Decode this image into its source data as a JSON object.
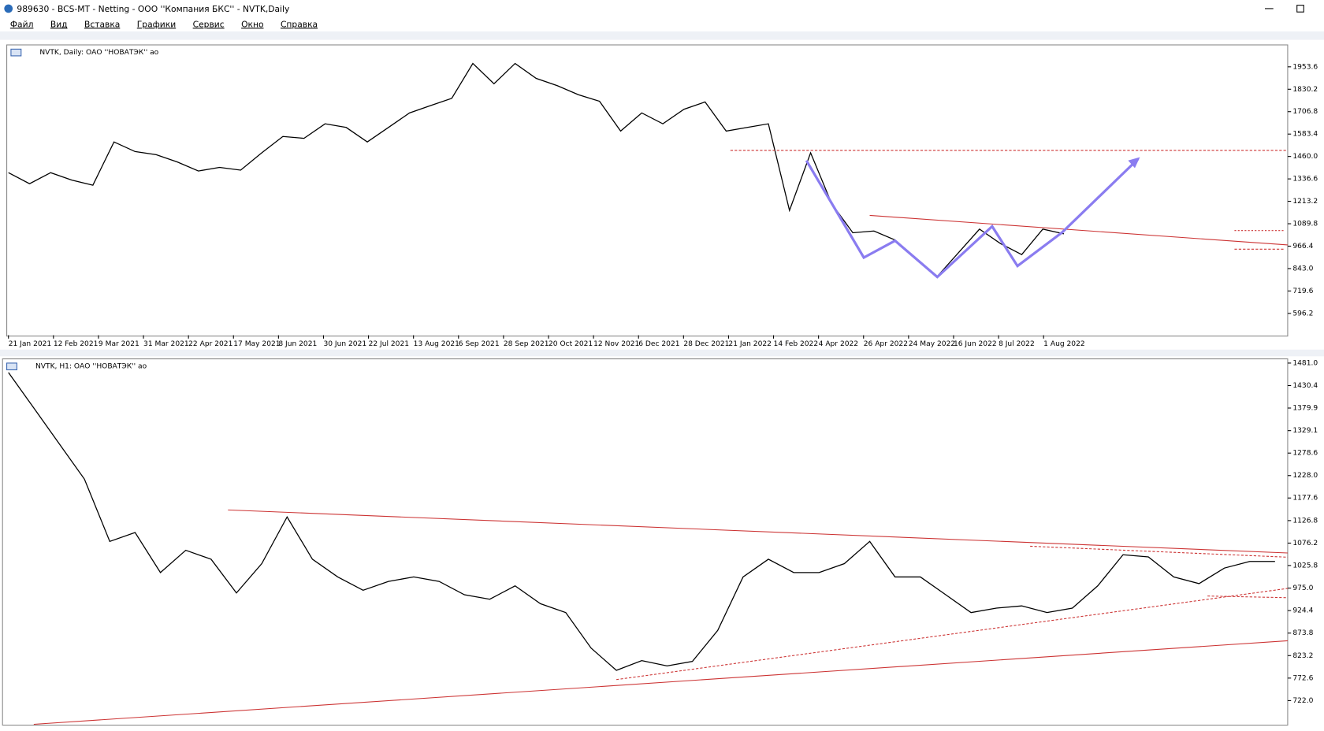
{
  "window": {
    "title": "989630 - BCS-MT - Netting - ООО ''Компания БКС'' - NVTK,Daily",
    "menu": [
      "Файл",
      "Вид",
      "Вставка",
      "Графики",
      "Сервис",
      "Окно",
      "Справка"
    ]
  },
  "chart_data": [
    {
      "type": "line",
      "title": "NVTK, Daily:  ОАО ''НОВАТЭК'' ао",
      "color": "#000000",
      "x_labels": [
        "21 Jan 2021",
        "12 Feb 2021",
        "9 Mar 2021",
        "31 Mar 2021",
        "22 Apr 2021",
        "17 May 2021",
        "8 Jun 2021",
        "30 Jun 2021",
        "22 Jul 2021",
        "13 Aug 2021",
        "6 Sep 2021",
        "28 Sep 2021",
        "20 Oct 2021",
        "12 Nov 2021",
        "6 Dec 2021",
        "28 Dec 2021",
        "21 Jan 2022",
        "14 Feb 2022",
        "4 Apr 2022",
        "26 Apr 2022",
        "24 May 2022",
        "16 Jun 2022",
        "8 Jul 2022",
        "1 Aug 2022"
      ],
      "values": [
        1371,
        1310,
        1371,
        1330,
        1302,
        1540,
        1487,
        1470,
        1430,
        1380,
        1400,
        1385,
        1480,
        1570,
        1560,
        1640,
        1620,
        1540,
        1620,
        1700,
        1740,
        1780,
        1972,
        1860,
        1972,
        1890,
        1850,
        1800,
        1764,
        1600,
        1700,
        1640,
        1720,
        1760,
        1600,
        1620,
        1640,
        1163,
        1480,
        1200,
        1040,
        1050,
        1000,
        900,
        800,
        930,
        1060,
        980,
        920,
        1060,
        1034
      ],
      "ylim": [
        476,
        2065
      ],
      "yticks": [
        1953.6,
        1830.2,
        1706.8,
        1583.4,
        {
          "value": 1460,
          "label": "1460.0"
        },
        1336.6,
        1213.2,
        1089.8,
        966.4,
        {
          "value": 843,
          "label": "843.0"
        },
        719.6,
        596.2
      ]
    },
    {
      "type": "line",
      "title": "NVTK, H1:  ОАО ''НОВАТЭК'' ао",
      "color": "#000000",
      "values": [
        1460,
        1380,
        1300,
        1220,
        1080,
        1100,
        1010,
        1060,
        1040,
        964,
        1030,
        1135,
        1040,
        1000,
        970,
        990,
        1000,
        990,
        960,
        950,
        980,
        940,
        920,
        840,
        790,
        812,
        800,
        810,
        880,
        1000,
        1040,
        1010,
        1010,
        1030,
        1080,
        1000,
        1000,
        960,
        920,
        930,
        935,
        920,
        930,
        980,
        1050,
        1045,
        1000,
        985,
        1020,
        1035,
        1035
      ],
      "ylim": [
        668.7,
        1488.6
      ],
      "yticks": [
        {
          "value": 1481,
          "label": "1481.0"
        },
        1430.4,
        1379.9,
        1329.1,
        1278.6,
        {
          "value": 1228,
          "label": "1228.0"
        },
        1177.6,
        1126.8,
        1076.2,
        1025.8,
        {
          "value": 975,
          "label": "975.0"
        },
        924.4,
        873.8,
        823.2,
        772.6,
        {
          "value": 722,
          "label": "722.0"
        }
      ]
    }
  ]
}
